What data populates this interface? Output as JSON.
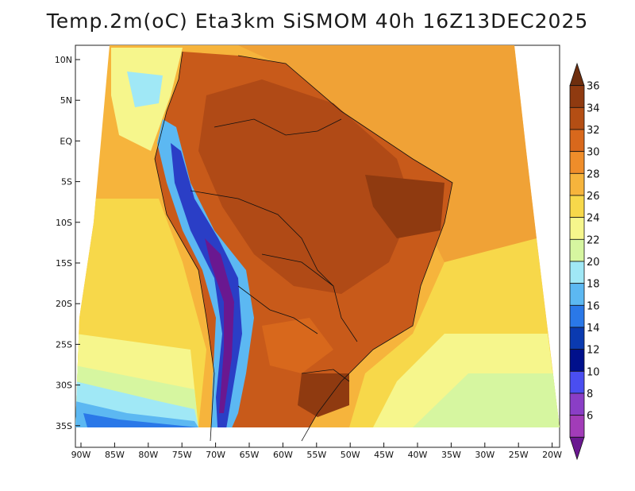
{
  "title": "Temp.2m(oC) Eta3km SiSMOM 40h 16Z13DEC2025",
  "lat_labels": [
    "10N",
    "5N",
    "EQ",
    "5S",
    "10S",
    "15S",
    "20S",
    "25S",
    "30S",
    "35S"
  ],
  "lon_labels": [
    "90W",
    "85W",
    "80W",
    "75W",
    "70W",
    "65W",
    "60W",
    "55W",
    "50W",
    "45W",
    "40W",
    "35W",
    "30W",
    "25W",
    "20W"
  ],
  "colorbar": {
    "labels": [
      "36",
      "34",
      "32",
      "30",
      "28",
      "26",
      "24",
      "22",
      "20",
      "18",
      "16",
      "14",
      "12",
      "10",
      "8",
      "6"
    ],
    "colors": [
      "#6e2e0e",
      "#8f3a10",
      "#b44e14",
      "#d8681c",
      "#ef8d2a",
      "#f6b43c",
      "#f7d84a",
      "#f6f68c",
      "#d6f6a0",
      "#a0e8f6",
      "#5cb8f2",
      "#2a78e8",
      "#0a3ab0",
      "#00108c",
      "#4a4ef0",
      "#8a3ec6",
      "#a23cb8",
      "#6a1890"
    ]
  },
  "map": {
    "type": "filled-contour",
    "variable": "2m temperature",
    "units": "oC",
    "lon_range": [
      -90,
      -20
    ],
    "lat_range": [
      -37,
      12
    ]
  }
}
